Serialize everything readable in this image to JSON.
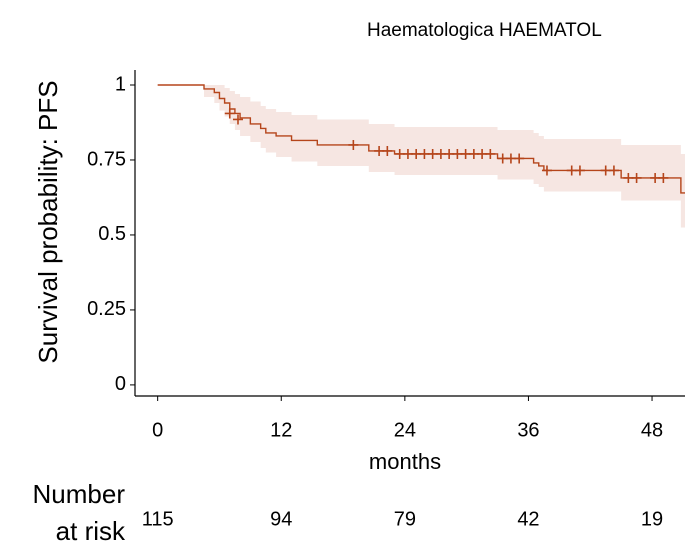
{
  "chart_data": {
    "type": "survival",
    "title": "Haematologica HAEMATOL",
    "y_label": "Survival probability: PFS",
    "x_label": "months",
    "color": "#b5451b",
    "band_color": "#f6e6e2",
    "xlim": [
      -2.2,
      51.2
    ],
    "ylim": [
      -0.037,
      1.05
    ],
    "xticks": [
      0,
      12,
      24,
      36,
      48
    ],
    "yticks": [
      0,
      0.25,
      0.5,
      0.75,
      1
    ],
    "x": [
      0,
      4.5,
      5.5,
      6,
      6.5,
      7,
      7.5,
      8,
      9,
      10,
      10.5,
      11.5,
      13,
      15.5,
      20.5,
      23,
      33,
      36.5,
      37,
      37.5,
      45,
      50.8
    ],
    "y": [
      1,
      0.987,
      0.975,
      0.955,
      0.94,
      0.92,
      0.905,
      0.89,
      0.87,
      0.855,
      0.84,
      0.83,
      0.815,
      0.8,
      0.78,
      0.77,
      0.755,
      0.74,
      0.73,
      0.715,
      0.69,
      0.64
    ],
    "upper": [
      1,
      1,
      1,
      1,
      0.99,
      0.98,
      0.97,
      0.96,
      0.945,
      0.93,
      0.92,
      0.91,
      0.9,
      0.885,
      0.87,
      0.86,
      0.85,
      0.84,
      0.83,
      0.82,
      0.8,
      0.77
    ],
    "lower": [
      1,
      0.96,
      0.94,
      0.915,
      0.895,
      0.87,
      0.85,
      0.83,
      0.81,
      0.79,
      0.775,
      0.76,
      0.745,
      0.73,
      0.71,
      0.7,
      0.685,
      0.67,
      0.66,
      0.645,
      0.615,
      0.525
    ],
    "censored": {
      "x": [
        7,
        7.8,
        19,
        21.5,
        22.3,
        23.5,
        24.3,
        25.1,
        25.9,
        26.7,
        27.5,
        28.3,
        29.1,
        29.9,
        30.7,
        31.5,
        32.3,
        33.5,
        34.3,
        35.1,
        37.8,
        40.2,
        41,
        43.5,
        44.3,
        45.7,
        46.5,
        48.3,
        49.1
      ],
      "y": [
        0.905,
        0.885,
        0.8,
        0.78,
        0.78,
        0.77,
        0.77,
        0.77,
        0.77,
        0.77,
        0.77,
        0.77,
        0.77,
        0.77,
        0.77,
        0.77,
        0.77,
        0.755,
        0.755,
        0.755,
        0.715,
        0.715,
        0.715,
        0.715,
        0.715,
        0.69,
        0.69,
        0.69,
        0.69
      ]
    },
    "risk_table": {
      "title": [
        "Number",
        "at risk"
      ],
      "x": [
        0,
        12,
        24,
        36,
        48
      ],
      "values": [
        115,
        94,
        79,
        42,
        19
      ]
    }
  }
}
